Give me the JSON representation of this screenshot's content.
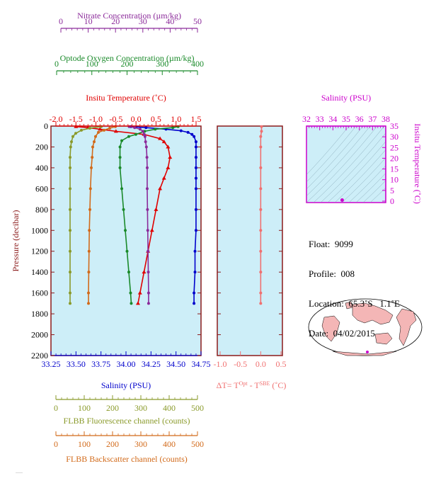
{
  "axes": {
    "nitrate": {
      "title": "Nitrate Concentration (µm/kg)",
      "ticks": [
        "0",
        "10",
        "20",
        "30",
        "40",
        "50"
      ],
      "color": "#8b2a9a"
    },
    "oxygen": {
      "title": "Optode Oxygen Concentration (µm/kg)",
      "ticks": [
        "0",
        "100",
        "200",
        "300",
        "400"
      ],
      "color": "#1a8a2a"
    },
    "temperature": {
      "title": "Insitu Temperature (˚C)",
      "ticks": [
        "-2.0",
        "-1.5",
        "-1.0",
        "-0.5",
        "0.0",
        "0.5",
        "1.0",
        "1.5"
      ],
      "color": "#e00000"
    },
    "pressure": {
      "title": "Pressure (decibar)",
      "ticks": [
        "0",
        "200",
        "400",
        "600",
        "800",
        "1000",
        "1200",
        "1400",
        "1600",
        "1800",
        "2000",
        "2200"
      ],
      "color": "#8b1a1a"
    },
    "salinity": {
      "title": "Salinity (PSU)",
      "ticks": [
        "33.25",
        "33.50",
        "33.75",
        "34.00",
        "34.25",
        "34.50",
        "34.75"
      ],
      "color": "#0000cc"
    },
    "fluorescence": {
      "title": "FLBB Fluorescence channel (counts)",
      "ticks": [
        "0",
        "100",
        "200",
        "300",
        "400",
        "500"
      ],
      "color": "#8a9a2a"
    },
    "backscatter": {
      "title": "FLBB Backscatter channel (counts)",
      "ticks": [
        "0",
        "100",
        "200",
        "300",
        "400",
        "500"
      ],
      "color": "#d26a1a"
    },
    "delta_t": {
      "title_main": "ΔT= T",
      "title_sup1": "Opt",
      "title_mid": " - T",
      "title_sup2": "SBE",
      "title_unit": " (˚C)",
      "ticks": [
        "-1.0",
        "-0.5",
        "0.0",
        "0.5"
      ],
      "color": "#f07070"
    },
    "ts_salinity": {
      "title": "Salinity (PSU)",
      "ticks": [
        "32",
        "33",
        "34",
        "35",
        "36",
        "37",
        "38"
      ],
      "color": "#cc00cc"
    },
    "ts_temperature": {
      "title": "Insitu Temperature (˚C)",
      "ticks": [
        "0",
        "5",
        "10",
        "15",
        "20",
        "25",
        "30",
        "35"
      ],
      "color": "#cc00cc"
    }
  },
  "info": {
    "float": "Float:  9099",
    "profile": "Profile:  008",
    "location": "Location:  65.3˚S   1.1˚E",
    "date": "Date:  04/02/2015"
  },
  "colors": {
    "plot_bg": "#cdeef8",
    "frame": "#8b1a1a"
  },
  "chart_data": {
    "type": "line",
    "y": {
      "label": "Pressure (decibar)",
      "range": [
        0,
        2200
      ],
      "inverted": true
    },
    "series": [
      {
        "key": "salinity",
        "units": "PSU",
        "xlim": [
          33.25,
          34.75
        ],
        "color": "#0000cc",
        "points": [
          [
            34.05,
            5
          ],
          [
            34.2,
            15
          ],
          [
            34.4,
            30
          ],
          [
            34.55,
            45
          ],
          [
            34.62,
            60
          ],
          [
            34.66,
            80
          ],
          [
            34.68,
            100
          ],
          [
            34.7,
            150
          ],
          [
            34.7,
            200
          ],
          [
            34.7,
            300
          ],
          [
            34.7,
            400
          ],
          [
            34.7,
            500
          ],
          [
            34.7,
            600
          ],
          [
            34.7,
            800
          ],
          [
            34.7,
            1000
          ],
          [
            34.69,
            1200
          ],
          [
            34.69,
            1400
          ],
          [
            34.68,
            1600
          ],
          [
            34.68,
            1700
          ]
        ]
      },
      {
        "key": "temperature",
        "units": "˚C",
        "xlim": [
          -2.0,
          1.5
        ],
        "color": "#e00000",
        "points": [
          [
            -1.5,
            5
          ],
          [
            -1.2,
            15
          ],
          [
            -0.9,
            30
          ],
          [
            -0.5,
            50
          ],
          [
            0.2,
            80
          ],
          [
            0.6,
            120
          ],
          [
            0.7,
            150
          ],
          [
            0.8,
            200
          ],
          [
            0.85,
            300
          ],
          [
            0.8,
            400
          ],
          [
            0.7,
            500
          ],
          [
            0.6,
            600
          ],
          [
            0.5,
            800
          ],
          [
            0.4,
            1000
          ],
          [
            0.3,
            1200
          ],
          [
            0.2,
            1400
          ],
          [
            0.1,
            1600
          ],
          [
            0.05,
            1700
          ]
        ]
      },
      {
        "key": "oxygen",
        "units": "µm/kg",
        "xlim": [
          0,
          400
        ],
        "color": "#1a8a2a",
        "points": [
          [
            345,
            5
          ],
          [
            330,
            15
          ],
          [
            280,
            30
          ],
          [
            250,
            50
          ],
          [
            225,
            80
          ],
          [
            205,
            100
          ],
          [
            185,
            140
          ],
          [
            180,
            200
          ],
          [
            180,
            300
          ],
          [
            180,
            400
          ],
          [
            185,
            600
          ],
          [
            190,
            800
          ],
          [
            195,
            1000
          ],
          [
            200,
            1200
          ],
          [
            205,
            1400
          ],
          [
            210,
            1600
          ],
          [
            212,
            1700
          ]
        ]
      },
      {
        "key": "nitrate",
        "units": "µm/kg",
        "xlim": [
          0,
          50
        ],
        "color": "#8b2a9a",
        "points": [
          [
            25,
            5
          ],
          [
            27,
            15
          ],
          [
            29,
            30
          ],
          [
            30,
            50
          ],
          [
            30.5,
            80
          ],
          [
            30.8,
            100
          ],
          [
            31,
            150
          ],
          [
            31.3,
            200
          ],
          [
            31.5,
            300
          ],
          [
            31.6,
            400
          ],
          [
            31.6,
            600
          ],
          [
            31.7,
            800
          ],
          [
            31.8,
            1000
          ],
          [
            31.9,
            1200
          ],
          [
            32,
            1400
          ],
          [
            32.1,
            1600
          ],
          [
            32.1,
            1700
          ]
        ]
      },
      {
        "key": "fluorescence",
        "units": "counts",
        "xlim": [
          0,
          500
        ],
        "color": "#8a9a2a",
        "points": [
          [
            160,
            5
          ],
          [
            120,
            20
          ],
          [
            90,
            40
          ],
          [
            70,
            70
          ],
          [
            60,
            100
          ],
          [
            55,
            150
          ],
          [
            52,
            200
          ],
          [
            50,
            300
          ],
          [
            50,
            400
          ],
          [
            50,
            600
          ],
          [
            50,
            800
          ],
          [
            50,
            1000
          ],
          [
            50,
            1200
          ],
          [
            50,
            1400
          ],
          [
            50,
            1600
          ],
          [
            50,
            1700
          ]
        ]
      },
      {
        "key": "backscatter",
        "units": "counts",
        "xlim": [
          0,
          500
        ],
        "color": "#d26a1a",
        "points": [
          [
            210,
            5
          ],
          [
            190,
            20
          ],
          [
            170,
            40
          ],
          [
            150,
            60
          ],
          [
            140,
            100
          ],
          [
            135,
            150
          ],
          [
            130,
            200
          ],
          [
            128,
            300
          ],
          [
            125,
            400
          ],
          [
            122,
            600
          ],
          [
            120,
            800
          ],
          [
            118,
            1000
          ],
          [
            117,
            1200
          ],
          [
            116,
            1400
          ],
          [
            115,
            1600
          ],
          [
            115,
            1700
          ]
        ]
      },
      {
        "key": "delta_t",
        "units": "˚C",
        "xlim": [
          -1.0,
          0.5
        ],
        "color": "#f07070",
        "points": [
          [
            0.02,
            5
          ],
          [
            0.02,
            50
          ],
          [
            0.0,
            100
          ],
          [
            0.0,
            200
          ],
          [
            0.0,
            400
          ],
          [
            0.0,
            600
          ],
          [
            0.0,
            800
          ],
          [
            0.0,
            1000
          ],
          [
            0.0,
            1200
          ],
          [
            0.0,
            1400
          ],
          [
            0.0,
            1600
          ],
          [
            0.0,
            1700
          ]
        ]
      }
    ],
    "ts_diagram": {
      "x": {
        "label": "Salinity (PSU)",
        "range": [
          32,
          38
        ]
      },
      "y": {
        "label": "Insitu Temperature (˚C)",
        "range": [
          0,
          35
        ]
      },
      "points": [
        [
          34.7,
          0.5
        ]
      ]
    }
  }
}
